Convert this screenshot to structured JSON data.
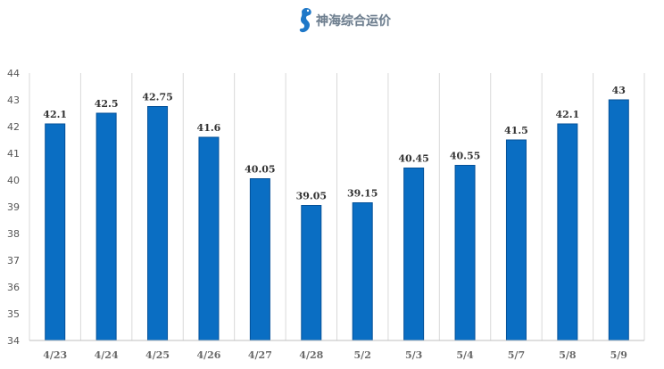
{
  "logo": {
    "text": "神海综合运价",
    "icon": "seahorse-icon"
  },
  "colors": {
    "bar": "#0a6ec3",
    "bar_edge": "#045199",
    "grid": "#d9d9d9",
    "axis": "#bfbfbf"
  },
  "chart_data": {
    "type": "bar",
    "title": "",
    "xlabel": "",
    "ylabel": "",
    "categories": [
      "4/23",
      "4/24",
      "4/25",
      "4/26",
      "4/27",
      "4/28",
      "5/2",
      "5/3",
      "5/4",
      "5/7",
      "5/8",
      "5/9"
    ],
    "series": [
      {
        "values": [
          42.1,
          42.5,
          42.75,
          41.6,
          40.05,
          39.05,
          39.15,
          40.45,
          40.55,
          41.5,
          42.1,
          43
        ]
      }
    ],
    "data_labels": [
      "42.1",
      "42.5",
      "42.75",
      "41.6",
      "40.05",
      "39.05",
      "39.15",
      "40.45",
      "40.55",
      "41.5",
      "42.1",
      "43"
    ],
    "ylim": [
      34,
      44
    ],
    "yticks": [
      "34",
      "35",
      "36",
      "37",
      "38",
      "39",
      "40",
      "41",
      "42",
      "43",
      "44"
    ],
    "grid": "vertical separators between categories",
    "legend": "none"
  }
}
